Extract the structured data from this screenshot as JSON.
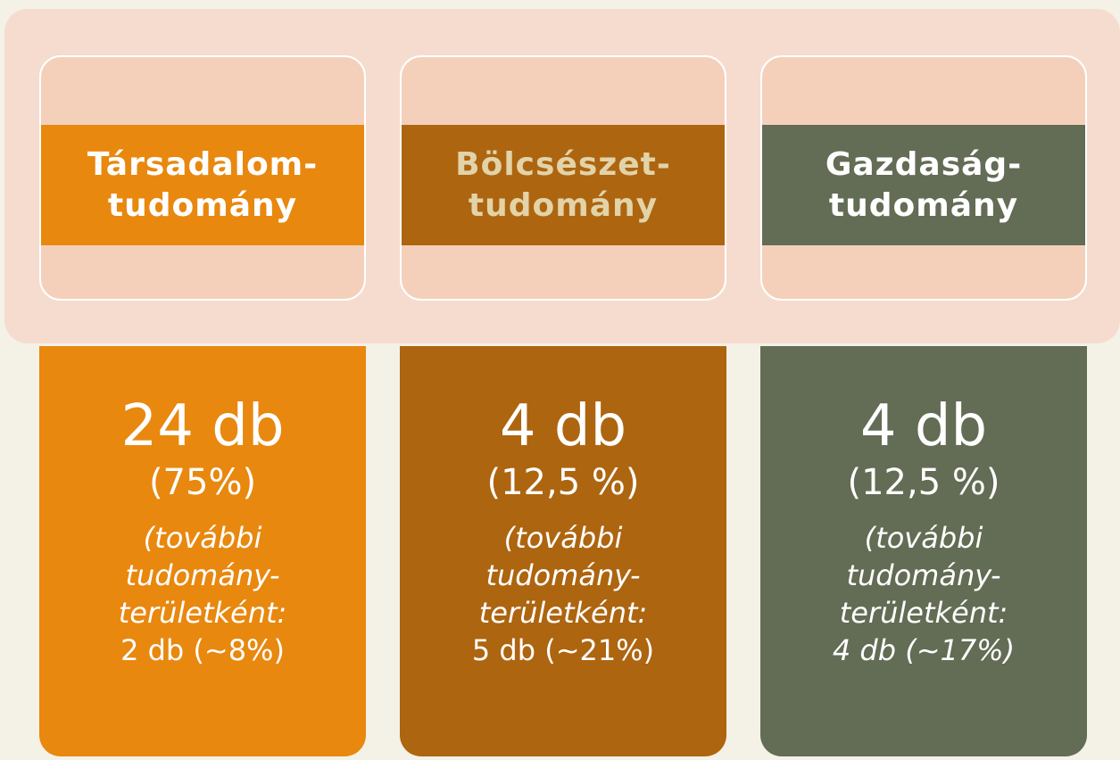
{
  "columns": [
    {
      "header": [
        "Társadalom-",
        "tudomány"
      ],
      "count": "24 db",
      "share": "(75%)",
      "note": [
        "(további",
        "tudomány-",
        "területként:",
        "2 db (~8%)"
      ]
    },
    {
      "header": [
        "Bölcsészet-",
        "tudomány"
      ],
      "count": "4 db",
      "share": "(12,5 %)",
      "note": [
        "(további",
        "tudomány-",
        "területként:",
        "5 db (~21%)"
      ]
    },
    {
      "header": [
        "Gazdaság-",
        "tudomány"
      ],
      "count": "4 db",
      "share": "(12,5 %)",
      "note": [
        "(további",
        "tudomány-",
        "területként:",
        "4 db (~17%)"
      ]
    }
  ]
}
